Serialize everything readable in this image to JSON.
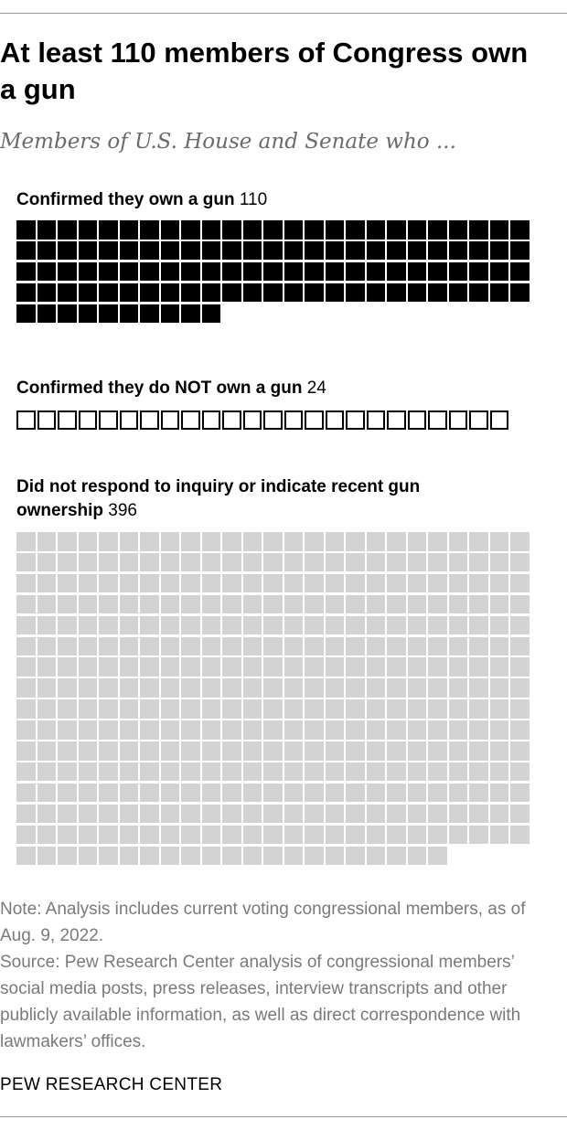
{
  "title": "At least 110 members of Congress own a gun",
  "subtitle": "Members of U.S. House and Senate who ...",
  "chart_data": {
    "type": "waffle",
    "units_per_row": 25,
    "categories": [
      {
        "label": "Confirmed they own a gun",
        "count": 110,
        "style": "filled",
        "color": "#000000"
      },
      {
        "label": "Confirmed they do NOT own a gun",
        "count": 24,
        "style": "outline",
        "color": "#000000"
      },
      {
        "label": "Did not respond to inquiry or indicate recent gun ownership",
        "count": 396,
        "style": "filled",
        "color": "#d3d3d3"
      }
    ]
  },
  "labels": {
    "own_bold": "Confirmed they own a gun",
    "own_count": "110",
    "not_own_bold": "Confirmed they do NOT own a gun",
    "not_own_count": "24",
    "no_response_bold": "Did not respond to inquiry or indicate recent gun ownership",
    "no_response_count": "396"
  },
  "note": "Note: Analysis includes current voting congressional members, as of Aug. 9, 2022.",
  "source": "Source: Pew Research Center analysis of congressional members’ social media posts, press releases, interview transcripts and other publicly available information, as well as direct correspondence with lawmakers’ offices.",
  "credit": "PEW RESEARCH CENTER"
}
